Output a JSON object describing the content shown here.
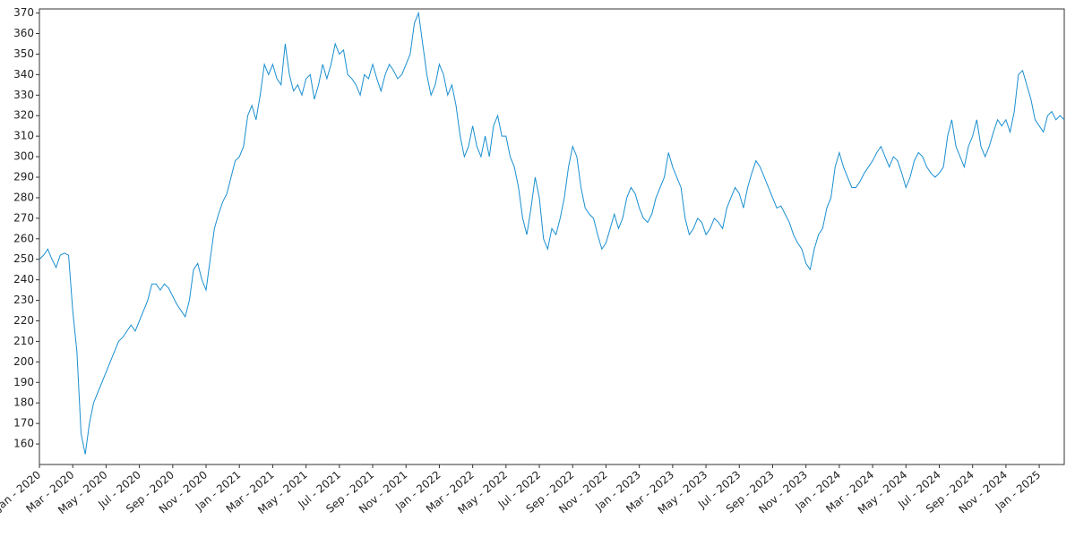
{
  "chart_data": {
    "type": "line",
    "categories": [
      "Jan - 2020",
      null,
      null,
      null,
      null,
      null,
      null,
      null,
      "Mar - 2020",
      null,
      null,
      null,
      null,
      null,
      null,
      null,
      "May - 2020",
      null,
      null,
      null,
      null,
      null,
      null,
      null,
      "Jul - 2020",
      null,
      null,
      null,
      null,
      null,
      null,
      null,
      "Sep - 2020",
      null,
      null,
      null,
      null,
      null,
      null,
      null,
      "Nov - 2020",
      null,
      null,
      null,
      null,
      null,
      null,
      null,
      "Jan - 2021",
      null,
      null,
      null,
      null,
      null,
      null,
      null,
      "Mar - 2021",
      null,
      null,
      null,
      null,
      null,
      null,
      null,
      "May - 2021",
      null,
      null,
      null,
      null,
      null,
      null,
      null,
      "Jul - 2021",
      null,
      null,
      null,
      null,
      null,
      null,
      null,
      "Sep - 2021",
      null,
      null,
      null,
      null,
      null,
      null,
      null,
      "Nov - 2021",
      null,
      null,
      null,
      null,
      null,
      null,
      null,
      "Jan - 2022",
      null,
      null,
      null,
      null,
      null,
      null,
      null,
      "Mar - 2022",
      null,
      null,
      null,
      null,
      null,
      null,
      null,
      "May - 2022",
      null,
      null,
      null,
      null,
      null,
      null,
      null,
      "Jul - 2022",
      null,
      null,
      null,
      null,
      null,
      null,
      null,
      "Sep - 2022",
      null,
      null,
      null,
      null,
      null,
      null,
      null,
      "Nov - 2022",
      null,
      null,
      null,
      null,
      null,
      null,
      null,
      "Jan - 2023",
      null,
      null,
      null,
      null,
      null,
      null,
      null,
      "Mar - 2023",
      null,
      null,
      null,
      null,
      null,
      null,
      null,
      "May - 2023",
      null,
      null,
      null,
      null,
      null,
      null,
      null,
      "Jul - 2023",
      null,
      null,
      null,
      null,
      null,
      null,
      null,
      "Sep - 2023",
      null,
      null,
      null,
      null,
      null,
      null,
      null,
      "Nov - 2023",
      null,
      null,
      null,
      null,
      null,
      null,
      null,
      "Jan - 2024",
      null,
      null,
      null,
      null,
      null,
      null,
      null,
      "Mar - 2024",
      null,
      null,
      null,
      null,
      null,
      null,
      null,
      "May - 2024",
      null,
      null,
      null,
      null,
      null,
      null,
      null,
      "Jul - 2024",
      null,
      null,
      null,
      null,
      null,
      null,
      null,
      "Sep - 2024",
      null,
      null,
      null,
      null,
      null,
      null,
      null,
      "Nov - 2024",
      null,
      null,
      null,
      null,
      null,
      null,
      null,
      "Jan - 2025",
      null,
      null,
      null,
      null,
      null,
      null
    ],
    "values": [
      250,
      252,
      255,
      250,
      246,
      252,
      253,
      252,
      225,
      205,
      165,
      155,
      170,
      180,
      185,
      190,
      195,
      200,
      205,
      210,
      212,
      215,
      218,
      215,
      220,
      225,
      230,
      238,
      238,
      235,
      238,
      236,
      232,
      228,
      225,
      222,
      230,
      245,
      248,
      240,
      235,
      250,
      265,
      272,
      278,
      282,
      290,
      298,
      300,
      305,
      320,
      325,
      318,
      330,
      345,
      340,
      345,
      338,
      335,
      355,
      340,
      332,
      335,
      330,
      338,
      340,
      328,
      335,
      345,
      338,
      345,
      355,
      350,
      352,
      340,
      338,
      335,
      330,
      340,
      338,
      345,
      338,
      332,
      340,
      345,
      342,
      338,
      340,
      345,
      350,
      365,
      370,
      355,
      340,
      330,
      335,
      345,
      340,
      330,
      335,
      325,
      310,
      300,
      305,
      315,
      305,
      300,
      310,
      300,
      315,
      320,
      310,
      310,
      300,
      295,
      285,
      270,
      262,
      275,
      290,
      280,
      260,
      255,
      265,
      262,
      270,
      280,
      295,
      305,
      300,
      285,
      275,
      272,
      270,
      262,
      255,
      258,
      265,
      272,
      265,
      270,
      280,
      285,
      282,
      275,
      270,
      268,
      272,
      280,
      285,
      290,
      302,
      295,
      290,
      285,
      270,
      262,
      265,
      270,
      268,
      262,
      265,
      270,
      268,
      265,
      275,
      280,
      285,
      282,
      275,
      285,
      292,
      298,
      295,
      290,
      285,
      280,
      275,
      276,
      272,
      268,
      262,
      258,
      255,
      248,
      245,
      255,
      262,
      265,
      275,
      280,
      295,
      302,
      295,
      290,
      285,
      285,
      288,
      292,
      295,
      298,
      302,
      305,
      300,
      295,
      300,
      298,
      292,
      285,
      290,
      298,
      302,
      300,
      295,
      292,
      290,
      292,
      295,
      310,
      318,
      305,
      300,
      295,
      305,
      310,
      318,
      305,
      300,
      305,
      312,
      318,
      315,
      318,
      312,
      322,
      340,
      342,
      335,
      328,
      318,
      315,
      312,
      320,
      322,
      318,
      320,
      318
    ],
    "color": "#1a8fd0",
    "ylim": [
      150,
      372
    ],
    "yticks": [
      160,
      170,
      180,
      190,
      200,
      210,
      220,
      230,
      240,
      250,
      260,
      270,
      280,
      290,
      300,
      310,
      320,
      330,
      340,
      350,
      360,
      370
    ]
  }
}
